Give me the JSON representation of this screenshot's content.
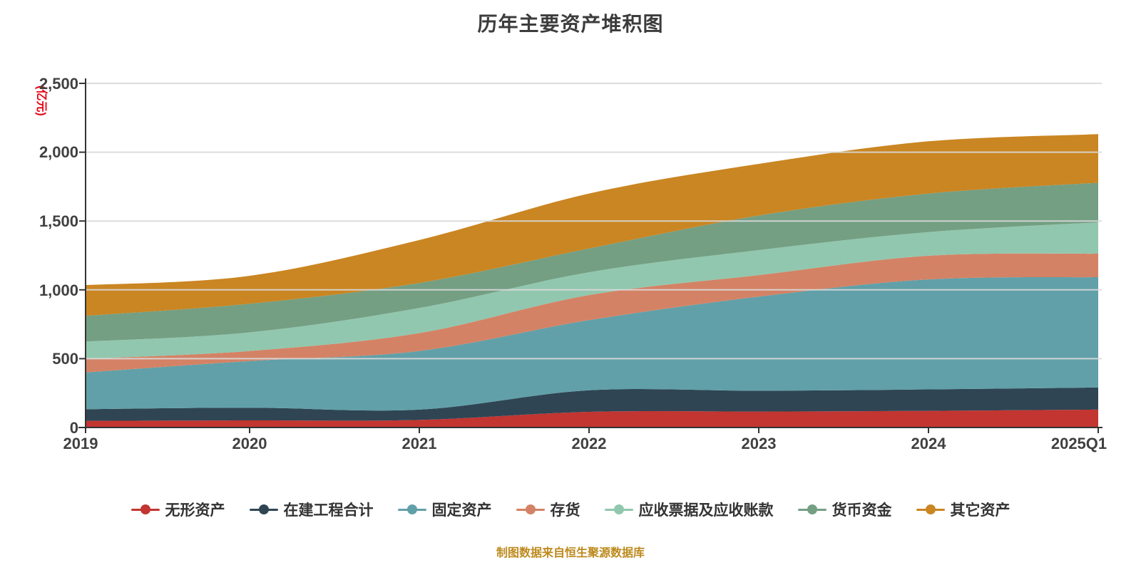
{
  "title": "历年主要资产堆积图",
  "caption": {
    "text": "制图数据来自恒生聚源数据库",
    "color": "#bd8a1e"
  },
  "y_axis": {
    "name": "(亿元)",
    "name_color": "#e60012",
    "ticks": [
      "0",
      "500",
      "1,000",
      "1,500",
      "2,000",
      "2,500"
    ]
  },
  "x_axis": {
    "categories": [
      "2019",
      "2020",
      "2021",
      "2022",
      "2023",
      "2024",
      "2025Q1"
    ]
  },
  "chart_data": {
    "type": "area",
    "stacked": true,
    "title": "历年主要资产堆积图",
    "x": [
      "2019",
      "2020",
      "2021",
      "2022",
      "2023",
      "2024",
      "2025Q1"
    ],
    "ylim": [
      0,
      2500
    ],
    "y_tick_values": [
      0,
      500,
      1000,
      1500,
      2000,
      2500
    ],
    "grid": "horizontal-only",
    "legend_position": "bottom",
    "series": [
      {
        "name": "无形资产",
        "color": "#c23531",
        "values": [
          48,
          52,
          55,
          114,
          116,
          121,
          130
        ]
      },
      {
        "name": "在建工程合计",
        "color": "#2f4554",
        "values": [
          85,
          92,
          75,
          156,
          151,
          156,
          161
        ]
      },
      {
        "name": "固定资产",
        "color": "#61a0a8",
        "values": [
          267,
          339,
          426,
          510,
          684,
          799,
          801
        ]
      },
      {
        "name": "存货",
        "color": "#d48265",
        "values": [
          99,
          73,
          130,
          182,
          156,
          172,
          171
        ]
      },
      {
        "name": "应收票据及应收账款",
        "color": "#91c7ae",
        "values": [
          125,
          135,
          182,
          166,
          182,
          172,
          227
        ]
      },
      {
        "name": "货币资金",
        "color": "#749f83",
        "values": [
          187,
          208,
          182,
          172,
          251,
          280,
          288
        ]
      },
      {
        "name": "其它资产",
        "color": "#ca8622",
        "values": [
          223,
          203,
          312,
          400,
          375,
          379,
          353
        ]
      }
    ],
    "stack_totals": [
      1034,
      1102,
      1362,
      1700,
      1915,
      2079,
      2131
    ]
  }
}
